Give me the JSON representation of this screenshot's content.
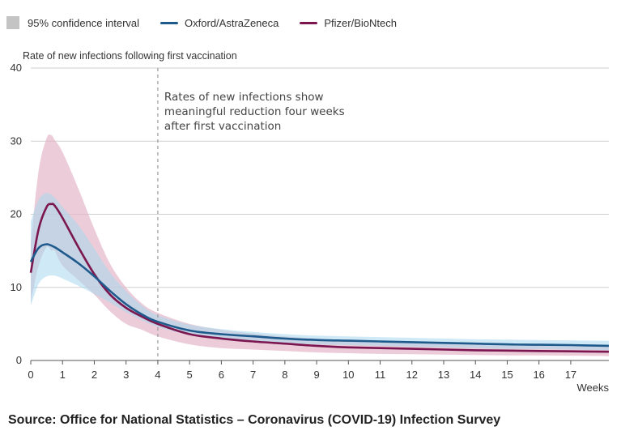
{
  "legend": {
    "ci_label": "95% confidence interval",
    "items": [
      {
        "label": "Oxford/AstraZeneca"
      },
      {
        "label": "Pfizer/BioNtech"
      }
    ]
  },
  "source": "Source: Office for National Statistics – Coronavirus (COVID-19) Infection Survey",
  "colors": {
    "oxford_line": "#1f5a8c",
    "oxford_band": "#a7d9ee",
    "pfizer_line": "#7b1650",
    "pfizer_band": "#e3b6c8",
    "grid": "#cfcfcf",
    "marker": "#9a9a9a"
  },
  "chart_data": {
    "type": "line",
    "ylabel": "Rate of new infections following first vaccination",
    "xlabel": "Weeks",
    "xlim": [
      0,
      18.2
    ],
    "ylim": [
      0,
      40
    ],
    "x_ticks": [
      0,
      1,
      2,
      3,
      4,
      5,
      6,
      7,
      8,
      9,
      10,
      11,
      12,
      13,
      14,
      15,
      16,
      17
    ],
    "y_ticks": [
      0,
      10,
      20,
      30,
      40
    ],
    "grid": true,
    "legend_position": "top-left",
    "marker_line": {
      "x": 4,
      "annotation": [
        "Rates of new infections show",
        "meaningful reduction four weeks",
        "after first vaccination"
      ]
    },
    "series": [
      {
        "name": "Oxford/AstraZeneca",
        "x": [
          0,
          0.25,
          0.5,
          0.75,
          1,
          1.5,
          2,
          2.5,
          3,
          3.5,
          4,
          5,
          6,
          7,
          8,
          9,
          10,
          11,
          12,
          13,
          14,
          15,
          16,
          17,
          18.2
        ],
        "values": [
          13.5,
          15.4,
          15.9,
          15.5,
          14.8,
          13.3,
          11.5,
          9.5,
          7.7,
          6.3,
          5.3,
          4.1,
          3.6,
          3.3,
          3.0,
          2.8,
          2.7,
          2.6,
          2.5,
          2.4,
          2.3,
          2.2,
          2.15,
          2.1,
          2.0
        ],
        "ci_lower": [
          7.5,
          10.5,
          11.5,
          11.6,
          11.2,
          10.2,
          9.1,
          7.9,
          6.6,
          5.5,
          4.6,
          3.5,
          3.0,
          2.7,
          2.4,
          2.2,
          2.1,
          2.0,
          1.9,
          1.8,
          1.7,
          1.6,
          1.55,
          1.5,
          1.4
        ],
        "ci_upper": [
          19.0,
          22.0,
          22.9,
          22.3,
          21.0,
          18.5,
          15.3,
          12.0,
          9.5,
          7.5,
          6.2,
          4.9,
          4.3,
          3.9,
          3.6,
          3.4,
          3.3,
          3.2,
          3.1,
          3.0,
          2.9,
          2.85,
          2.8,
          2.75,
          2.7
        ]
      },
      {
        "name": "Pfizer/BioNtech",
        "x": [
          0,
          0.25,
          0.5,
          0.65,
          0.75,
          1,
          1.5,
          2,
          2.5,
          3,
          3.5,
          4,
          5,
          6,
          7,
          8,
          9,
          10,
          11,
          12,
          13,
          14,
          15,
          16,
          17,
          18.2
        ],
        "values": [
          12.0,
          18.0,
          21.0,
          21.4,
          21.2,
          19.5,
          15.5,
          11.8,
          9.0,
          7.2,
          6.0,
          5.0,
          3.6,
          3.0,
          2.6,
          2.3,
          2.0,
          1.8,
          1.7,
          1.6,
          1.5,
          1.4,
          1.35,
          1.3,
          1.25,
          1.2
        ],
        "ci_lower": [
          8.0,
          13.0,
          15.5,
          15.0,
          15.0,
          13.0,
          11.0,
          9.0,
          6.7,
          5.0,
          4.2,
          3.3,
          2.2,
          1.7,
          1.5,
          1.3,
          1.1,
          1.0,
          0.9,
          0.85,
          0.8,
          0.75,
          0.7,
          0.7,
          0.65,
          0.6
        ],
        "ci_upper": [
          16.0,
          26.0,
          30.4,
          30.8,
          30.2,
          28.5,
          23.5,
          18.0,
          13.2,
          10.0,
          7.8,
          6.5,
          5.0,
          4.2,
          3.7,
          3.3,
          3.0,
          2.75,
          2.6,
          2.5,
          2.4,
          2.3,
          2.2,
          2.15,
          2.1,
          2.0
        ]
      }
    ]
  }
}
